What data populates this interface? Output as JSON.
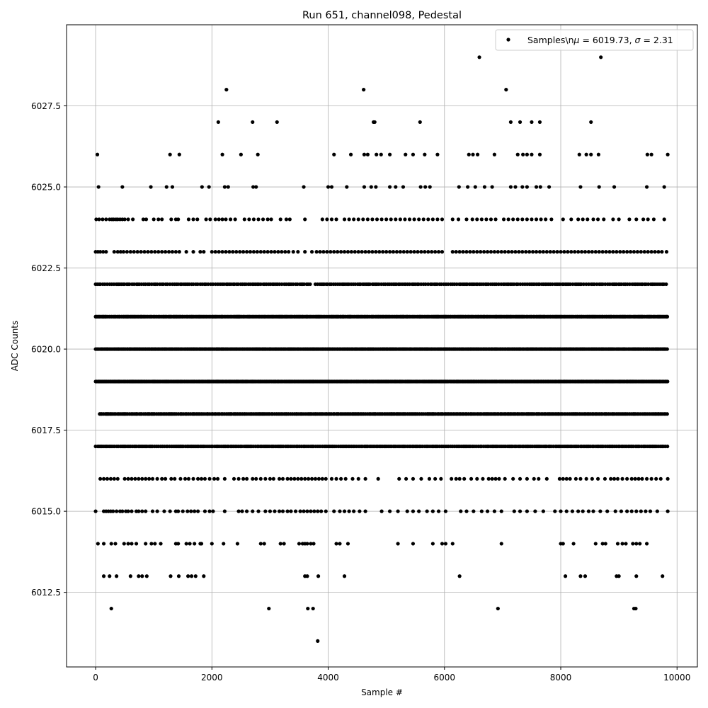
{
  "chart_data": {
    "type": "scatter",
    "title": "Run 651, channel098, Pedestal",
    "xlabel": "Sample #",
    "ylabel": "ADC Counts",
    "xlim": [
      -500,
      10350
    ],
    "ylim": [
      6010.2,
      6030.0
    ],
    "xticks": [
      0,
      2000,
      4000,
      6000,
      8000,
      10000
    ],
    "xtick_labels": [
      "0",
      "2000",
      "4000",
      "6000",
      "8000",
      "10000"
    ],
    "yticks": [
      6012.5,
      6015.0,
      6017.5,
      6020.0,
      6022.5,
      6025.0,
      6027.5
    ],
    "ytick_labels": [
      "6012.5",
      "6015.0",
      "6017.5",
      "6020.0",
      "6022.5",
      "6025.0",
      "6027.5"
    ],
    "grid": true,
    "legend": {
      "placement": "top-right",
      "entries": [
        "Samples\\n$\\mu$ = 6019.73, $\\sigma$ = 2.31"
      ]
    },
    "legend_parts": {
      "prefix": "Samples\\n",
      "mu": "μ",
      "mid": " = 6019.73, ",
      "sigma": "σ",
      "suffix": " = 2.31"
    },
    "series": [
      {
        "name": "Samples\\n$\\mu$ = 6019.73, $\\sigma$ = 2.31",
        "color": "#000000",
        "x_range": [
          0,
          9840
        ],
        "levels": [
          {
            "y": 6026,
            "x": [
              30,
              1280,
              1440,
              2180,
              2500,
              2790,
              4100,
              4390,
              4620,
              4680,
              4830,
              4910,
              5060,
              5330,
              5460,
              5660,
              5880,
              6420,
              6490,
              6570,
              6860,
              7260,
              7350,
              7420,
              7500,
              7640,
              8320,
              8440,
              8520,
              8650,
              9490,
              9560,
              9840
            ]
          },
          {
            "y": 6025,
            "x": [
              50,
              460,
              950,
              1220,
              1320,
              1830,
              1950,
              2220,
              2280,
              2710,
              2760,
              3580,
              4000,
              4060,
              4320,
              4620,
              4740,
              4820,
              5060,
              5160,
              5290,
              5590,
              5670,
              5750,
              6250,
              6400,
              6530,
              6690,
              6820,
              7140,
              7220,
              7340,
              7420,
              7580,
              7650,
              7800,
              8340,
              8660,
              8920,
              9480,
              9780
            ]
          },
          {
            "y": 6024,
            "x": [
              10,
              60,
              120,
              180,
              240,
              280,
              310,
              350,
              380,
              420,
              460,
              500,
              560,
              640,
              820,
              870,
              1000,
              1080,
              1140,
              1300,
              1380,
              1420,
              1600,
              1680,
              1750,
              1900,
              1970,
              2060,
              2120,
              2180,
              2240,
              2320,
              2400,
              2560,
              2640,
              2720,
              2800,
              2880,
              2960,
              3020,
              3180,
              3280,
              3340,
              3600,
              3900,
              3980,
              4060,
              4140,
              4280,
              4360,
              4440,
              4520,
              4600,
              4680,
              4760,
              4840,
              4920,
              5000,
              5080,
              5160,
              5240,
              5320,
              5400,
              5480,
              5560,
              5640,
              5720,
              5800,
              5880,
              5960,
              6140,
              6240,
              6380,
              6480,
              6560,
              6640,
              6720,
              6800,
              6880,
              7020,
              7100,
              7180,
              7260,
              7340,
              7420,
              7500,
              7580,
              7660,
              7740,
              7840,
              8040,
              8180,
              8300,
              8380,
              8460,
              8560,
              8640,
              8740,
              8900,
              9000,
              9180,
              9300,
              9420,
              9500,
              9600,
              9780
            ]
          },
          {
            "y": 6023,
            "x": [
              0,
              40,
              80,
              130,
              180,
              320,
              380,
              430,
              480,
              540,
              600,
              660,
              720,
              780,
              840,
              900,
              960,
              1020,
              1080,
              1140,
              1200,
              1260,
              1320,
              1380,
              1440,
              1560,
              1680,
              1800,
              1860,
              2000,
              2060,
              2120,
              2180,
              2240,
              2300,
              2360,
              2420,
              2480,
              2540,
              2600,
              2660,
              2720,
              2780,
              2840,
              2900,
              2960,
              3020,
              3080,
              3140,
              3200,
              3260,
              3320,
              3400,
              3480,
              3600,
              3720,
              3800,
              3860,
              3920,
              3980,
              4040,
              4100,
              4160,
              4220,
              4280,
              4340,
              4400,
              4460,
              4520,
              4580,
              4640,
              4700,
              4760,
              4820,
              4880,
              4940,
              5000,
              5060,
              5120,
              5180,
              5240,
              5300,
              5360,
              5420,
              5480,
              5540,
              5600,
              5660,
              5720,
              5780,
              5840,
              5900,
              5960,
              6140,
              6200,
              6260,
              6320,
              6380,
              6440,
              6500,
              6560,
              6620,
              6680,
              6740,
              6800,
              6860,
              6920,
              6980,
              7040,
              7100,
              7160,
              7220,
              7280,
              7340,
              7400,
              7460,
              7520,
              7580,
              7640,
              7700,
              7760,
              7820,
              7880,
              7940,
              8000,
              8060,
              8120,
              8180,
              8240,
              8300,
              8360,
              8420,
              8480,
              8540,
              8600,
              8660,
              8720,
              8780,
              8840,
              8900,
              8960,
              9020,
              9080,
              9140,
              9200,
              9260,
              9320,
              9380,
              9440,
              9500,
              9560,
              9620,
              9680,
              9740,
              9820
            ]
          },
          {
            "y": 6022,
            "dense": [
              [
                0,
                3720
              ],
              [
                3780,
                9840
              ]
            ],
            "spacing": 33
          },
          {
            "y": 6021,
            "dense": [
              [
                0,
                9840
              ]
            ],
            "spacing": 22
          },
          {
            "y": 6020,
            "dense": [
              [
                0,
                9840
              ]
            ],
            "spacing": 20
          },
          {
            "y": 6019,
            "dense": [
              [
                0,
                9840
              ]
            ],
            "spacing": 18
          },
          {
            "y": 6018,
            "dense": [
              [
                70,
                9840
              ]
            ],
            "spacing": 26
          },
          {
            "y": 6017,
            "dense": [
              [
                0,
                9840
              ]
            ],
            "spacing": 28
          },
          {
            "y": 6016,
            "x": [
              80,
              140,
              200,
              260,
              320,
              380,
              500,
              560,
              620,
              680,
              740,
              800,
              860,
              920,
              980,
              1060,
              1140,
              1200,
              1300,
              1360,
              1460,
              1540,
              1600,
              1680,
              1760,
              1820,
              1880,
              1960,
              2040,
              2100,
              2220,
              2380,
              2460,
              2540,
              2600,
              2700,
              2760,
              2840,
              2920,
              3000,
              3060,
              3160,
              3220,
              3300,
              3360,
              3420,
              3480,
              3540,
              3600,
              3660,
              3720,
              3780,
              3840,
              3900,
              3960,
              4060,
              4140,
              4220,
              4300,
              4420,
              4520,
              4640,
              4860,
              5220,
              5340,
              5460,
              5600,
              5740,
              5840,
              5940,
              6120,
              6200,
              6260,
              6340,
              6460,
              6560,
              6660,
              6760,
              6820,
              6880,
              6940,
              7040,
              7180,
              7300,
              7420,
              7540,
              7620,
              7760,
              7980,
              8040,
              8100,
              8160,
              8260,
              8340,
              8440,
              8540,
              8640,
              8760,
              8860,
              8920,
              8980,
              9060,
              9140,
              9220,
              9280,
              9340,
              9400,
              9480,
              9560,
              9640,
              9720,
              9840
            ]
          },
          {
            "y": 6015,
            "x": [
              0,
              140,
              180,
              220,
              260,
              300,
              360,
              420,
              460,
              520,
              560,
              620,
              700,
              740,
              800,
              860,
              980,
              1060,
              1180,
              1280,
              1380,
              1420,
              1500,
              1580,
              1640,
              1700,
              1760,
              1880,
              1960,
              2020,
              2220,
              2460,
              2520,
              2600,
              2700,
              2800,
              2920,
              3000,
              3080,
              3160,
              3220,
              3300,
              3360,
              3440,
              3520,
              3580,
              3640,
              3700,
              3760,
              3820,
              3880,
              3960,
              4100,
              4200,
              4280,
              4360,
              4440,
              4540,
              4640,
              4920,
              5060,
              5200,
              5360,
              5460,
              5560,
              5700,
              5800,
              5900,
              6020,
              6280,
              6380,
              6500,
              6640,
              6740,
              6860,
              6980,
              7200,
              7300,
              7420,
              7560,
              7700,
              7900,
              8000,
              8100,
              8200,
              8300,
              8380,
              8480,
              8560,
              8680,
              8800,
              8940,
              9040,
              9140,
              9220,
              9300,
              9380,
              9460,
              9540,
              9660,
              9840
            ]
          },
          {
            "y": 6014,
            "x": [
              40,
              140,
              270,
              340,
              490,
              560,
              620,
              700,
              860,
              960,
              1020,
              1120,
              1380,
              1420,
              1560,
              1620,
              1700,
              1800,
              1820,
              2000,
              2200,
              2440,
              2840,
              2900,
              3180,
              3240,
              3500,
              3560,
              3600,
              3640,
              3700,
              3750,
              4140,
              4200,
              4340,
              5200,
              5460,
              5800,
              5960,
              6020,
              6140,
              6980,
              8000,
              8040,
              8220,
              8600,
              8720,
              8770,
              8980,
              9060,
              9120,
              9240,
              9300,
              9360,
              9480
            ]
          },
          {
            "y": 6013,
            "x": [
              140,
              240,
              360,
              600,
              740,
              800,
              880,
              1290,
              1430,
              1590,
              1650,
              1720,
              1860,
              3600,
              3640,
              3830,
              4280,
              6260,
              8080,
              8340,
              8420,
              8960,
              9000,
              9300,
              9750
            ]
          },
          {
            "y": 6012,
            "x": [
              270,
              2980,
              3650,
              3740,
              6920,
              9260,
              9290
            ]
          },
          {
            "y": 6011,
            "x": [
              3820
            ]
          },
          {
            "y": 6027,
            "x": [
              2110,
              2700,
              3120,
              4780,
              4800,
              5580,
              7140,
              7300,
              7500,
              7640,
              8520
            ]
          },
          {
            "y": 6028,
            "x": [
              2250,
              4610,
              7060
            ]
          },
          {
            "y": 6029,
            "x": [
              6600,
              8690
            ]
          }
        ]
      }
    ]
  }
}
